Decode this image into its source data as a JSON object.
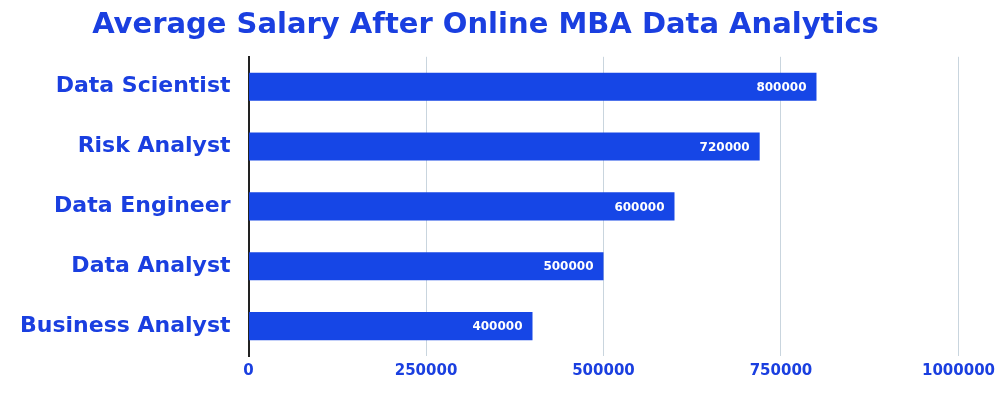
{
  "chart_data": {
    "type": "bar",
    "title": "Average Salary After Online MBA Data Analytics",
    "orientation": "horizontal",
    "categories": [
      "Data Scientist",
      "Risk Analyst",
      "Data Engineer",
      "Data Analyst",
      "Business Analyst"
    ],
    "values": [
      800000,
      720000,
      600000,
      500000,
      400000
    ],
    "color": "#1646e6",
    "xlim": [
      0,
      1000000
    ],
    "xticks": [
      0,
      250000,
      500000,
      750000,
      1000000
    ],
    "grid": true,
    "data_labels": true
  }
}
